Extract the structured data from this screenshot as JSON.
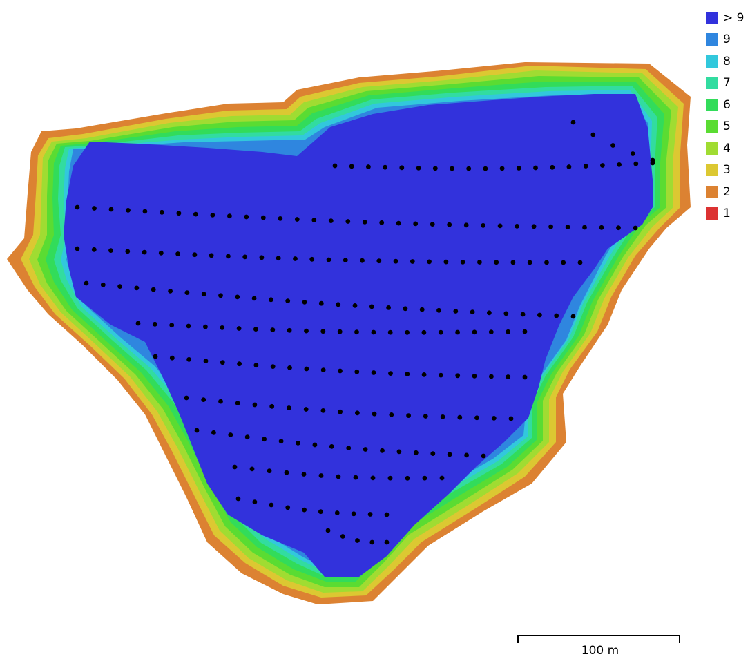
{
  "legend": {
    "items": [
      {
        "label": "> 9",
        "color": "#3232dc"
      },
      {
        "label": "9",
        "color": "#2f86df"
      },
      {
        "label": "8",
        "color": "#32c8dc"
      },
      {
        "label": "7",
        "color": "#32dca0"
      },
      {
        "label": "6",
        "color": "#32dc5a"
      },
      {
        "label": "5",
        "color": "#5adc32"
      },
      {
        "label": "4",
        "color": "#a0dc32"
      },
      {
        "label": "3",
        "color": "#dcc832"
      },
      {
        "label": "2",
        "color": "#dc8232"
      },
      {
        "label": "1",
        "color": "#dc3232"
      }
    ]
  },
  "scale_bar": {
    "label": "100 m"
  },
  "camera_marker_color": "#000000"
}
